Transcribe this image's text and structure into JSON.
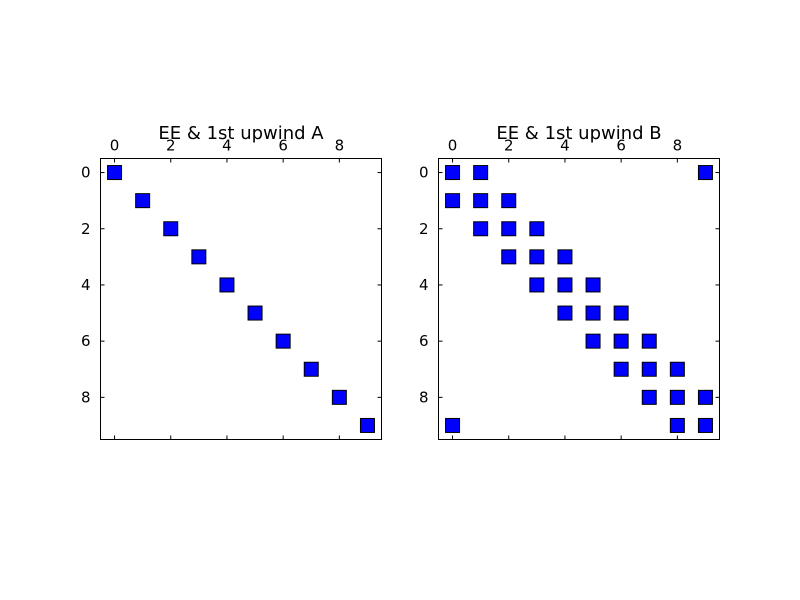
{
  "figure": {
    "background": "#ffffff"
  },
  "chart_data": [
    {
      "type": "spy",
      "title": "EE & 1st upwind A",
      "xlabel": "",
      "ylabel": "",
      "shape": [
        10,
        10
      ],
      "xlim": [
        -0.5,
        9.5
      ],
      "ylim": [
        9.5,
        -0.5
      ],
      "x_ticks": [
        0,
        2,
        4,
        6,
        8
      ],
      "y_ticks": [
        0,
        2,
        4,
        6,
        8
      ],
      "x_tick_labels": [
        "0",
        "2",
        "4",
        "6",
        "8"
      ],
      "y_tick_labels": [
        "0",
        "2",
        "4",
        "6",
        "8"
      ],
      "x_axis_position": "top",
      "marker": "square",
      "marker_color": "#0000ff",
      "grid": false,
      "nonzeros": [
        [
          0,
          0
        ],
        [
          1,
          1
        ],
        [
          2,
          2
        ],
        [
          3,
          3
        ],
        [
          4,
          4
        ],
        [
          5,
          5
        ],
        [
          6,
          6
        ],
        [
          7,
          7
        ],
        [
          8,
          8
        ],
        [
          9,
          9
        ]
      ]
    },
    {
      "type": "spy",
      "title": "EE & 1st upwind B",
      "xlabel": "",
      "ylabel": "",
      "shape": [
        10,
        10
      ],
      "xlim": [
        -0.5,
        9.5
      ],
      "ylim": [
        9.5,
        -0.5
      ],
      "x_ticks": [
        0,
        2,
        4,
        6,
        8
      ],
      "y_ticks": [
        0,
        2,
        4,
        6,
        8
      ],
      "x_tick_labels": [
        "0",
        "2",
        "4",
        "6",
        "8"
      ],
      "y_tick_labels": [
        "0",
        "2",
        "4",
        "6",
        "8"
      ],
      "x_axis_position": "top",
      "marker": "square",
      "marker_color": "#0000ff",
      "grid": false,
      "nonzeros": [
        [
          0,
          0
        ],
        [
          0,
          1
        ],
        [
          0,
          9
        ],
        [
          1,
          0
        ],
        [
          1,
          1
        ],
        [
          1,
          2
        ],
        [
          2,
          1
        ],
        [
          2,
          2
        ],
        [
          2,
          3
        ],
        [
          3,
          2
        ],
        [
          3,
          3
        ],
        [
          3,
          4
        ],
        [
          4,
          3
        ],
        [
          4,
          4
        ],
        [
          4,
          5
        ],
        [
          5,
          4
        ],
        [
          5,
          5
        ],
        [
          5,
          6
        ],
        [
          6,
          5
        ],
        [
          6,
          6
        ],
        [
          6,
          7
        ],
        [
          7,
          6
        ],
        [
          7,
          7
        ],
        [
          7,
          8
        ],
        [
          8,
          7
        ],
        [
          8,
          8
        ],
        [
          8,
          9
        ],
        [
          9,
          0
        ],
        [
          9,
          8
        ],
        [
          9,
          9
        ]
      ]
    }
  ]
}
